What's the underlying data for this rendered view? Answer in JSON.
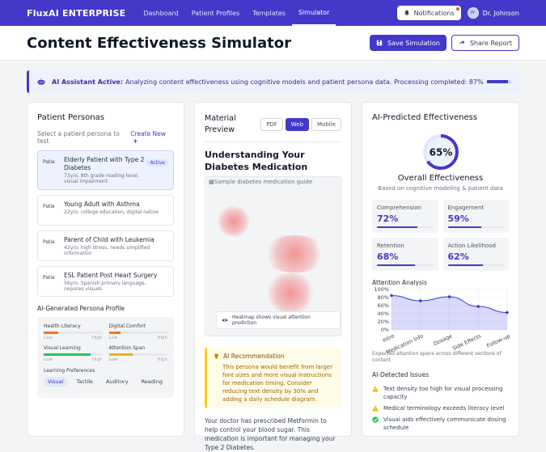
{
  "nav": {
    "brand": "FluxAI ENTERPRISE",
    "links": [
      "Dashboard",
      "Patient Profiles",
      "Templates",
      "Simulator"
    ],
    "active": "Simulator",
    "notifications_label": "Notifications",
    "user_name": "Dr. Johnson",
    "avatar_alt": "Pr"
  },
  "header": {
    "title": "Content Effectiveness Simulator",
    "save_label": "Save Simulation",
    "share_label": "Share Report"
  },
  "alert": {
    "strong": "AI Assistant Active:",
    "text": "Analyzing content effectiveness using cognitive models and patient persona data. Processing completed: 87%",
    "progress": 87
  },
  "personas_card": {
    "title": "Patient Personas",
    "select_text": "Select a patient persona to test",
    "create_label": "Create New",
    "items": [
      {
        "img_alt": "Patie",
        "name": "Elderly Patient with Type 2 Diabetes",
        "desc": "73y/o, 8th grade reading level, visual impairment",
        "badge": "Active"
      },
      {
        "img_alt": "Patie",
        "name": "Young Adult with Asthma",
        "desc": "22y/o, college education, digital native"
      },
      {
        "img_alt": "Patie",
        "name": "Parent of Child with Leukemia",
        "desc": "42y/o, high stress, needs simplified information"
      },
      {
        "img_alt": "Patie",
        "name": "ESL Patient Post Heart Surgery",
        "desc": "56y/o, Spanish primary language, requires visuals"
      }
    ],
    "profile_title": "AI-Generated Persona Profile",
    "sliders": [
      {
        "label": "Health Literacy",
        "value": 0.25,
        "color": "#f97316"
      },
      {
        "label": "Digital Comfort",
        "value": 0.2,
        "color": "#f97316"
      },
      {
        "label": "Visual Learning",
        "value": 0.8,
        "color": "#22c55e"
      },
      {
        "label": "Attention Span",
        "value": 0.4,
        "color": "#eab308"
      }
    ],
    "low_label": "Low",
    "high_label": "High",
    "pref_label": "Learning Preferences",
    "prefs": [
      "Visual",
      "Tactile",
      "Auditory",
      "Reading"
    ],
    "pref_selected": "Visual"
  },
  "preview_card": {
    "title": "Material Preview",
    "modes": [
      "PDF",
      "Web",
      "Mobile"
    ],
    "active_mode": "Web",
    "doc_title": "Understanding Your Diabetes Medication",
    "image_alt": "Sample diabetes medication guide",
    "heatmap_caption": "Heatmap shows visual attention prediction",
    "rec_title": "AI Recommendation",
    "rec_text": "This persona would benefit from larger font sizes and more visual instructions for medication timing. Consider reducing text density by 30% and adding a daily schedule diagram.",
    "body_text": "Your doctor has prescribed Metformin to help control your blood sugar. This medication is important for managing your Type 2 Diabetes."
  },
  "effect_card": {
    "title": "AI-Predicted Effectiveness",
    "overall_value": "65%",
    "overall_fraction": 0.65,
    "overall_label": "Overall Effectiveness",
    "overall_sub": "Based on cognitive modeling & patient data",
    "metrics": [
      {
        "label": "Comprehension",
        "value": "72%",
        "fraction": 0.72
      },
      {
        "label": "Engagement",
        "value": "59%",
        "fraction": 0.59
      },
      {
        "label": "Retention",
        "value": "68%",
        "fraction": 0.68
      },
      {
        "label": "Action Likelihood",
        "value": "62%",
        "fraction": 0.62
      }
    ],
    "chart_title": "Attention Analysis",
    "chart_caption": "Expected attention spans across different sections of content",
    "issues_title": "AI-Detected Issues",
    "issues": [
      {
        "type": "warning",
        "icon": "warning-icon",
        "text": "Text density too high for visual processing capacity"
      },
      {
        "type": "warning",
        "icon": "warning-icon",
        "text": "Medical terminology exceeds literacy level"
      },
      {
        "type": "success",
        "icon": "check-circle-icon",
        "text": "Visual aids effectively communicate dosing schedule"
      }
    ]
  },
  "chart_data": {
    "type": "area",
    "categories": [
      "Intro",
      "Medication Info",
      "Dosage",
      "Side Effects",
      "Follow-up"
    ],
    "values": [
      85,
      72,
      82,
      58,
      43
    ],
    "ylim": [
      0,
      100
    ],
    "yticks": [
      "0%",
      "20%",
      "40%",
      "60%",
      "80%",
      "100%"
    ],
    "title": "Attention Analysis",
    "grid": true,
    "color": "#4338ca"
  }
}
